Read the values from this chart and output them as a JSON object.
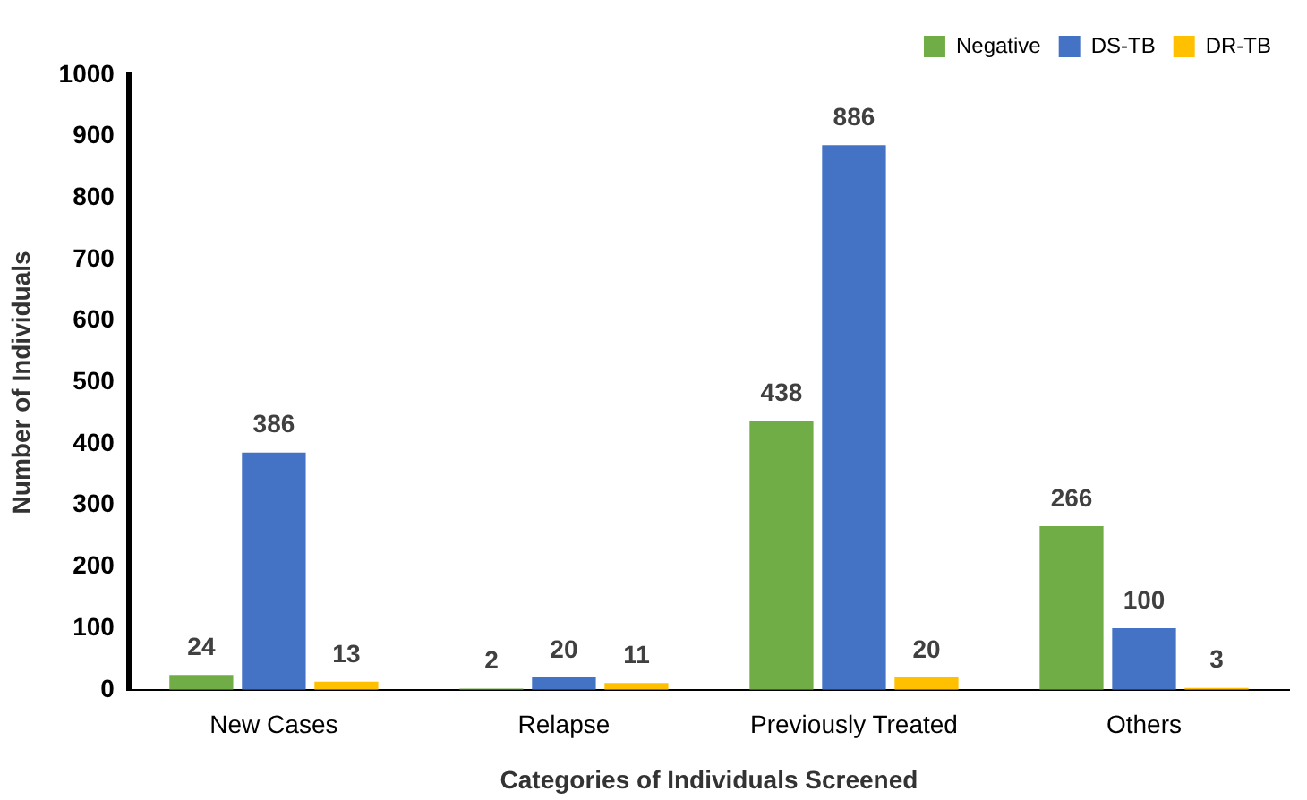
{
  "chart_data": {
    "type": "bar",
    "xlabel": "Categories of Individuals Screened",
    "ylabel": "Number of Individuals",
    "categories": [
      "New Cases",
      "Relapse",
      "Previously Treated",
      "Others"
    ],
    "series": [
      {
        "name": "Negative",
        "color": "#70ad47",
        "values": [
          24,
          2,
          438,
          266
        ]
      },
      {
        "name": "DS-TB",
        "color": "#4472c4",
        "values": [
          386,
          20,
          886,
          100
        ]
      },
      {
        "name": "DR-TB",
        "color": "#ffc000",
        "values": [
          13,
          11,
          20,
          3
        ]
      }
    ],
    "ylim": [
      0,
      1000
    ],
    "yticks": [
      0,
      100,
      200,
      300,
      400,
      500,
      600,
      700,
      800,
      900,
      1000
    ],
    "grid": false,
    "legend": "top right",
    "data_labels": true
  }
}
